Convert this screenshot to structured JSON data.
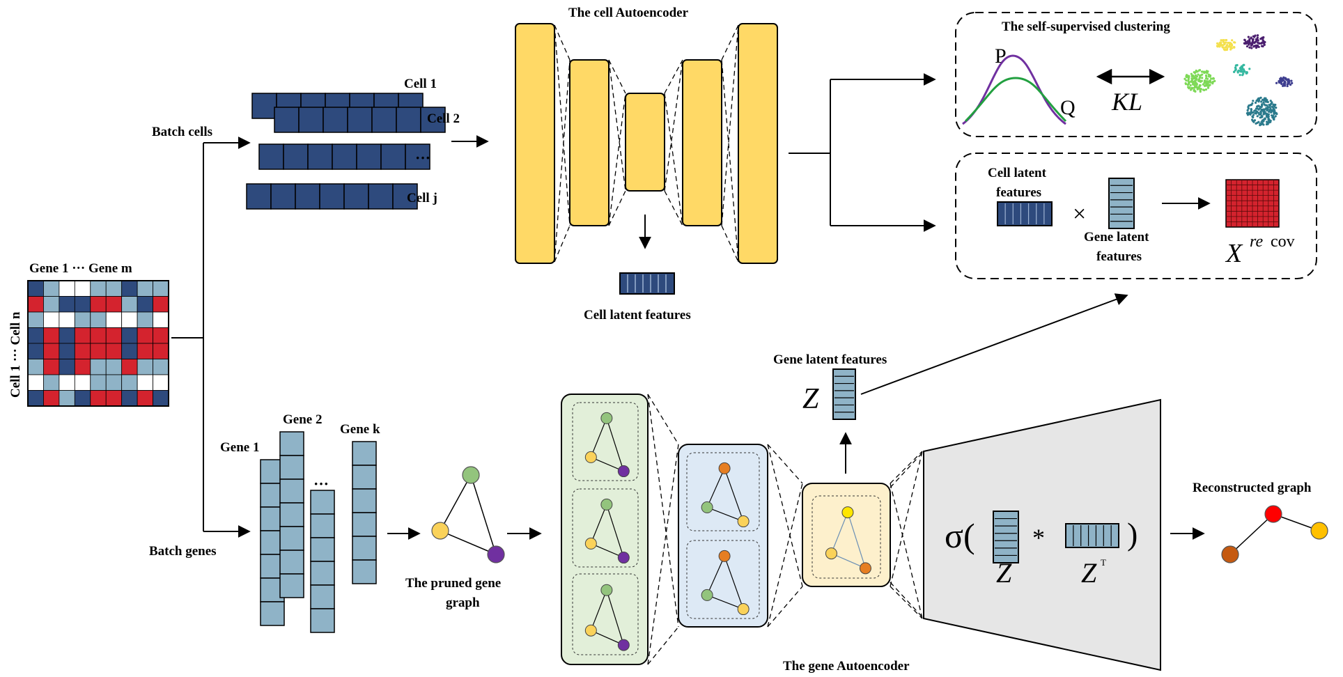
{
  "labels": {
    "matrix_top": "Gene 1 ··· Gene m",
    "matrix_side": "Cell 1 ··· Cell n",
    "batch_cells": "Batch cells",
    "batch_genes": "Batch genes",
    "cell1": "Cell 1",
    "cell2": "Cell 2",
    "cellj": "Cell j",
    "cell_dots": "···",
    "cell_ae_title": "The cell Autoencoder",
    "cell_latent": "Cell latent features",
    "gene1": "Gene 1",
    "gene2": "Gene 2",
    "genek": "Gene k",
    "gene_dots": "···",
    "pruned_graph_l1": "The pruned gene",
    "pruned_graph_l2": "graph",
    "gene_ae_title": "The gene Autoencoder",
    "gene_latent": "Gene latent features",
    "z": "Z",
    "clustering_title": "The self-supervised clustering",
    "p": "P",
    "q": "Q",
    "kl": "KL",
    "cell_latent_box_l1": "Cell latent",
    "cell_latent_box_l2": "features",
    "times": "×",
    "gene_latent_box_l1": "Gene latent",
    "gene_latent_box_l2": "features",
    "x": "X",
    "x_sup": "re",
    "x_sup2": "cov",
    "sigma": "σ(",
    "close_paren": ")",
    "star": "*",
    "z_decoder": "Z",
    "zt": "Z",
    "zt_sup": "T",
    "reconstructed": "Reconstructed graph"
  },
  "colors": {
    "dark_blue": "#2e4a7d",
    "light_blue": "#8fb3c7",
    "red": "#d4232e",
    "yellow": "#ffd966",
    "green_panel": "#e2efd9",
    "blue_panel": "#dde9f5",
    "yellow_panel": "#fdf0cc",
    "gray_panel": "#e6e6e6",
    "node_green": "#93c47d",
    "node_yellow": "#fad25a",
    "node_purple": "#7030a0",
    "node_orange": "#e67e22"
  }
}
